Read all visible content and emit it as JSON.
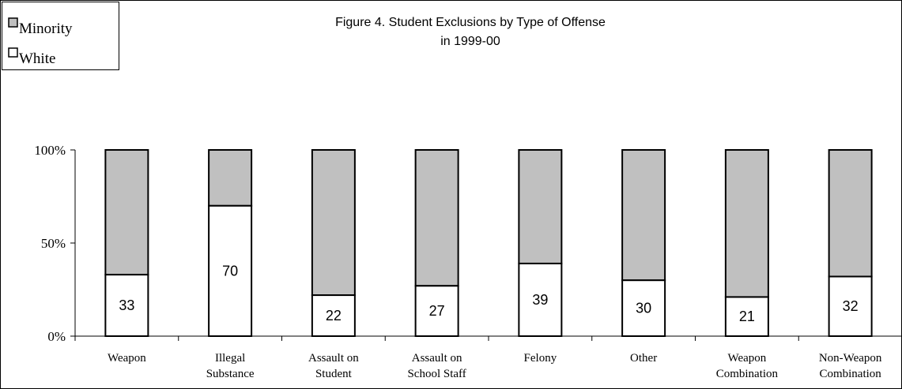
{
  "chart_data": {
    "type": "bar",
    "stacked": true,
    "percent_stacked": true,
    "title": "Figure 4. Student Exclusions by Type of Offense",
    "subtitle": "in 1999-00",
    "categories": [
      [
        "Weapon"
      ],
      [
        "Illegal",
        "Substance"
      ],
      [
        "Assault on",
        "Student"
      ],
      [
        "Assault on",
        "School Staff"
      ],
      [
        "Felony"
      ],
      [
        "Other"
      ],
      [
        "Weapon",
        "Combination"
      ],
      [
        "Non-Weapon",
        "Combination"
      ]
    ],
    "series": [
      {
        "name": "White",
        "values": [
          33,
          70,
          22,
          27,
          39,
          30,
          21,
          32
        ],
        "color": "#ffffff"
      },
      {
        "name": "Minority",
        "values": [
          67,
          30,
          78,
          73,
          61,
          70,
          79,
          68
        ],
        "color": "#c0c0c0"
      }
    ],
    "data_labels": [
      "33",
      "70",
      "22",
      "27",
      "39",
      "30",
      "21",
      "32"
    ],
    "ylim": [
      0,
      100
    ],
    "yticks": [
      "0%",
      "50%",
      "100%"
    ],
    "grid": false,
    "legend": {
      "placement": "top-left",
      "entries": [
        {
          "label": "Minority",
          "color": "#c0c0c0"
        },
        {
          "label": "White",
          "color": "#ffffff"
        }
      ]
    }
  }
}
